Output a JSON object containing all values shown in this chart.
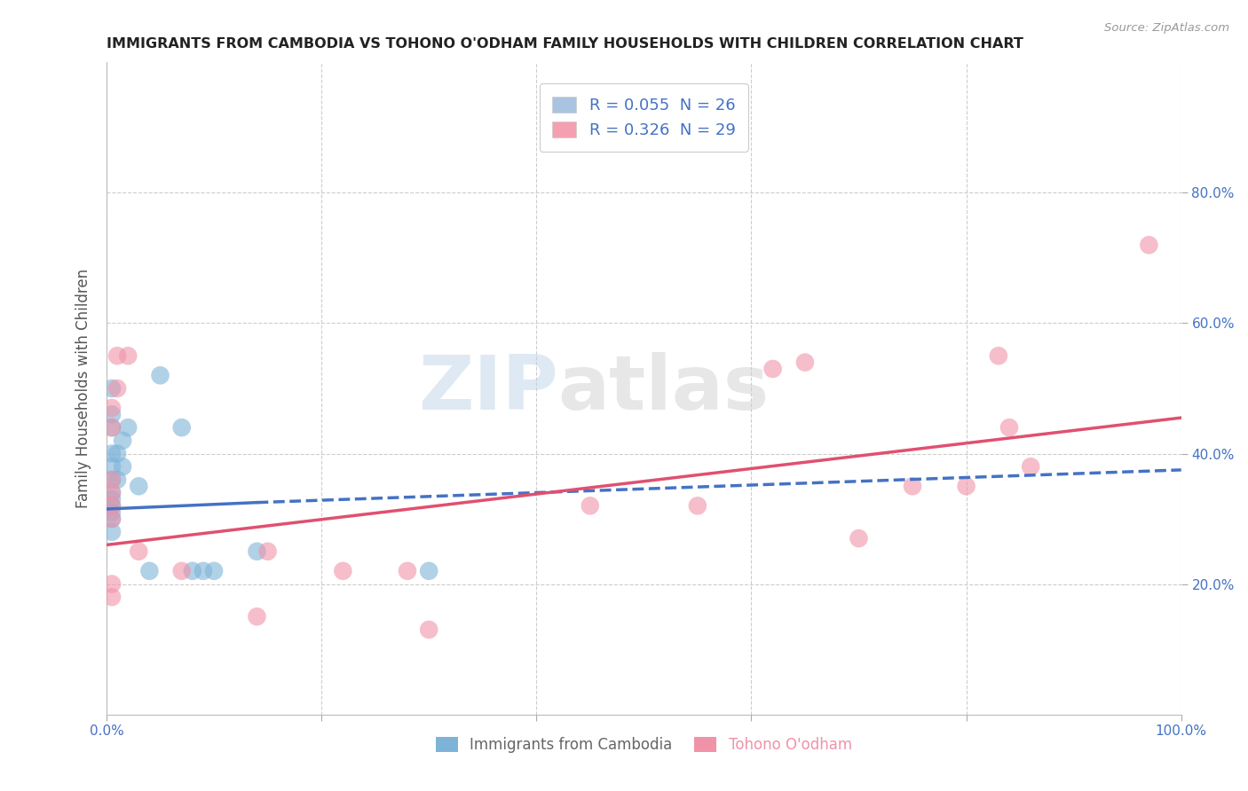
{
  "title": "IMMIGRANTS FROM CAMBODIA VS TOHONO O'ODHAM FAMILY HOUSEHOLDS WITH CHILDREN CORRELATION CHART",
  "source": "Source: ZipAtlas.com",
  "ylabel": "Family Households with Children",
  "xlim": [
    0.0,
    1.0
  ],
  "ylim": [
    0.0,
    1.0
  ],
  "xticks": [
    0.0,
    0.2,
    0.4,
    0.6,
    0.8,
    1.0
  ],
  "yticks": [
    0.2,
    0.4,
    0.6,
    0.8
  ],
  "xticklabels": [
    "0.0%",
    "",
    "",
    "",
    "",
    "100.0%"
  ],
  "yticklabels": [
    "20.0%",
    "40.0%",
    "60.0%",
    "80.0%"
  ],
  "watermark_line1": "ZIP",
  "watermark_line2": "atlas",
  "legend": [
    {
      "label": "R = 0.055  N = 26",
      "color": "#a8c4e0"
    },
    {
      "label": "R = 0.326  N = 29",
      "color": "#f4a0b0"
    }
  ],
  "blue_scatter": [
    [
      0.005,
      0.5
    ],
    [
      0.005,
      0.46
    ],
    [
      0.005,
      0.44
    ],
    [
      0.005,
      0.4
    ],
    [
      0.005,
      0.38
    ],
    [
      0.005,
      0.36
    ],
    [
      0.005,
      0.34
    ],
    [
      0.005,
      0.33
    ],
    [
      0.005,
      0.32
    ],
    [
      0.005,
      0.31
    ],
    [
      0.005,
      0.3
    ],
    [
      0.005,
      0.28
    ],
    [
      0.01,
      0.4
    ],
    [
      0.01,
      0.36
    ],
    [
      0.015,
      0.42
    ],
    [
      0.015,
      0.38
    ],
    [
      0.02,
      0.44
    ],
    [
      0.03,
      0.35
    ],
    [
      0.04,
      0.22
    ],
    [
      0.05,
      0.52
    ],
    [
      0.07,
      0.44
    ],
    [
      0.08,
      0.22
    ],
    [
      0.09,
      0.22
    ],
    [
      0.1,
      0.22
    ],
    [
      0.14,
      0.25
    ],
    [
      0.3,
      0.22
    ]
  ],
  "pink_scatter": [
    [
      0.005,
      0.47
    ],
    [
      0.005,
      0.44
    ],
    [
      0.005,
      0.36
    ],
    [
      0.005,
      0.34
    ],
    [
      0.005,
      0.32
    ],
    [
      0.005,
      0.3
    ],
    [
      0.005,
      0.2
    ],
    [
      0.005,
      0.18
    ],
    [
      0.01,
      0.55
    ],
    [
      0.01,
      0.5
    ],
    [
      0.02,
      0.55
    ],
    [
      0.03,
      0.25
    ],
    [
      0.07,
      0.22
    ],
    [
      0.14,
      0.15
    ],
    [
      0.15,
      0.25
    ],
    [
      0.22,
      0.22
    ],
    [
      0.28,
      0.22
    ],
    [
      0.3,
      0.13
    ],
    [
      0.45,
      0.32
    ],
    [
      0.55,
      0.32
    ],
    [
      0.62,
      0.53
    ],
    [
      0.65,
      0.54
    ],
    [
      0.7,
      0.27
    ],
    [
      0.75,
      0.35
    ],
    [
      0.8,
      0.35
    ],
    [
      0.83,
      0.55
    ],
    [
      0.84,
      0.44
    ],
    [
      0.86,
      0.38
    ],
    [
      0.97,
      0.72
    ]
  ],
  "blue_line_solid": {
    "x": [
      0.0,
      0.14
    ],
    "y": [
      0.315,
      0.325
    ]
  },
  "blue_line_dash": {
    "x": [
      0.14,
      1.0
    ],
    "y": [
      0.325,
      0.375
    ]
  },
  "pink_line": {
    "x": [
      0.0,
      1.0
    ],
    "y": [
      0.26,
      0.455
    ]
  },
  "blue_dot_color": "#7eb3d8",
  "pink_dot_color": "#f093a8",
  "blue_line_color": "#4472c4",
  "pink_line_color": "#e05070",
  "title_color": "#222222",
  "tick_color": "#4472c4",
  "grid_color": "#c8c8c8",
  "background_color": "#ffffff",
  "legend_text_color": "#4472c4"
}
